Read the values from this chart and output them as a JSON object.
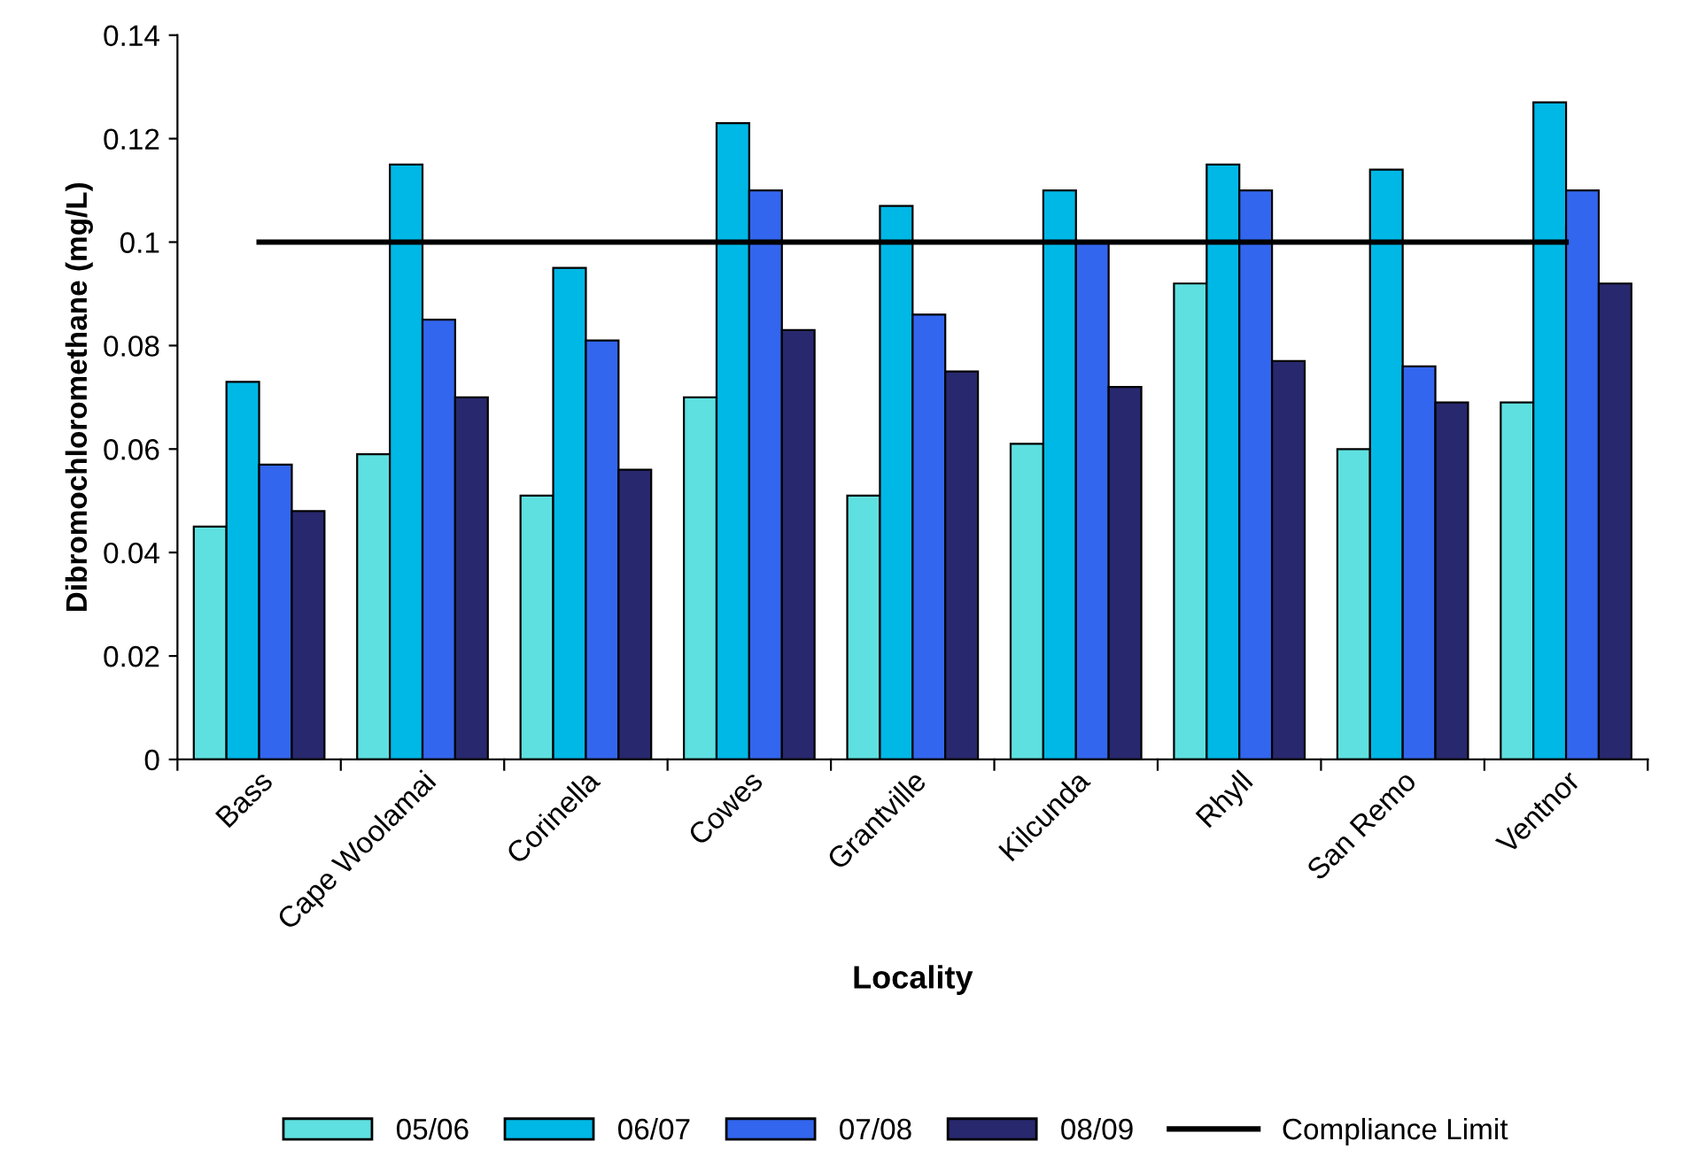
{
  "chart_data": {
    "type": "bar",
    "xlabel": "Locality",
    "ylabel": "Dibromochloromethane (mg/L)",
    "categories": [
      "Bass",
      "Cape Woolamai",
      "Corinella",
      "Cowes",
      "Grantville",
      "Kilcunda",
      "Rhyll",
      "San Remo",
      "Ventnor"
    ],
    "series": [
      {
        "name": "05/06",
        "color": "#5fe0e0",
        "values": [
          0.045,
          0.059,
          0.051,
          0.07,
          0.051,
          0.061,
          0.092,
          0.06,
          0.069
        ]
      },
      {
        "name": "06/07",
        "color": "#00b8e6",
        "values": [
          0.073,
          0.115,
          0.095,
          0.123,
          0.107,
          0.11,
          0.115,
          0.114,
          0.127
        ]
      },
      {
        "name": "07/08",
        "color": "#3366ee",
        "values": [
          0.057,
          0.085,
          0.081,
          0.11,
          0.086,
          0.1,
          0.11,
          0.076,
          0.11
        ]
      },
      {
        "name": "08/09",
        "color": "#28286e",
        "values": [
          0.048,
          0.07,
          0.056,
          0.083,
          0.075,
          0.072,
          0.077,
          0.069,
          0.092
        ]
      },
      {
        "name": "Compliance Limit",
        "type": "line",
        "color": "#000000",
        "values": [
          0.1,
          0.1,
          0.1,
          0.1,
          0.1,
          0.1,
          0.1,
          0.1,
          0.1
        ]
      }
    ],
    "ylim": [
      0,
      0.14
    ],
    "yticks": [
      0,
      0.02,
      0.04,
      0.06,
      0.08,
      0.1,
      0.12,
      0.14
    ],
    "grid": false,
    "legend": "bottom",
    "marker": "none",
    "line_style": "solid"
  }
}
